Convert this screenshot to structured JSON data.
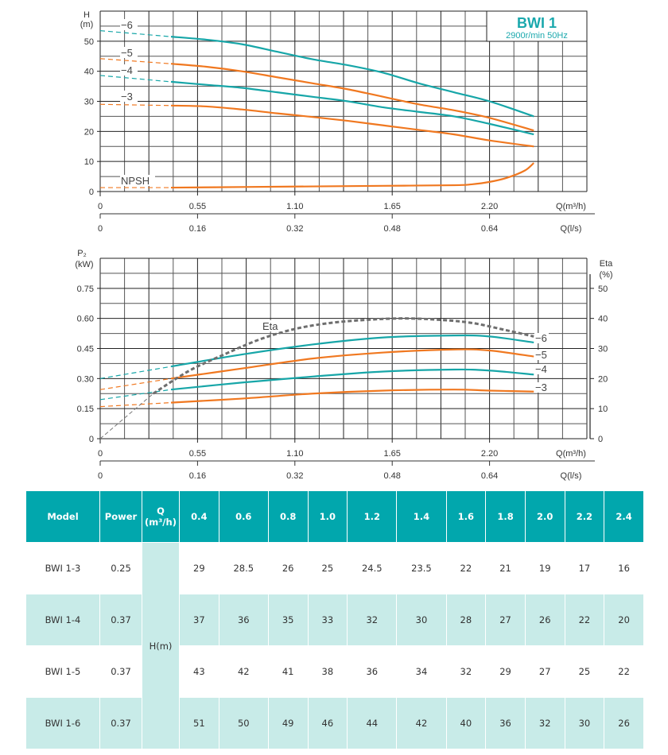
{
  "chart_data": [
    {
      "type": "line",
      "id": "head-chart",
      "title": "BWI 1",
      "subtitle": "2900r/min 50Hz",
      "ylabel": "H",
      "ylabel_unit": "(m)",
      "xlabel": "Q(m³/h)",
      "xlabel_secondary": "Q(l/s)",
      "xlim": [
        0,
        2.75
      ],
      "ylim": [
        0,
        60
      ],
      "yticks": [
        0,
        10,
        20,
        30,
        40,
        50
      ],
      "ytick_labels": [
        "0",
        "10",
        "20",
        "30",
        "40",
        "50"
      ],
      "xticks": [
        0,
        0.55,
        1.1,
        1.65,
        2.2
      ],
      "xtick_labels": [
        "0",
        "0.55",
        "1.10",
        "1.65",
        "2.20"
      ],
      "xticks_secondary_labels": [
        "0",
        "0.16",
        "0.32",
        "0.48",
        "0.64"
      ],
      "grid": true,
      "series": [
        {
          "name": "-6",
          "color": "#17a6a8",
          "dashed_x": [
            0,
            0.4
          ],
          "dashed_y": [
            53.5,
            51.5
          ],
          "x": [
            0.4,
            0.6,
            0.8,
            1.0,
            1.2,
            1.4,
            1.6,
            1.8,
            2.0,
            2.2,
            2.45
          ],
          "y": [
            51.5,
            50.5,
            49,
            46.5,
            44,
            42,
            39.5,
            36,
            33,
            30,
            25
          ]
        },
        {
          "name": "-5",
          "color": "#f07820",
          "dashed_x": [
            0,
            0.4
          ],
          "dashed_y": [
            44.2,
            42.5
          ],
          "x": [
            0.4,
            0.6,
            0.8,
            1.0,
            1.2,
            1.4,
            1.6,
            1.8,
            2.0,
            2.2,
            2.45
          ],
          "y": [
            42.5,
            41.5,
            40,
            38,
            36,
            34,
            31.5,
            29,
            27,
            24.5,
            20.3
          ]
        },
        {
          "name": "-4",
          "color": "#17a6a8",
          "dashed_x": [
            0,
            0.4
          ],
          "dashed_y": [
            38.6,
            36.5
          ],
          "x": [
            0.4,
            0.6,
            0.8,
            1.0,
            1.2,
            1.4,
            1.6,
            1.8,
            2.0,
            2.2,
            2.45
          ],
          "y": [
            36.5,
            35.5,
            34.5,
            33,
            31.5,
            30,
            28,
            26.5,
            25,
            22.5,
            19
          ]
        },
        {
          "name": "-3",
          "color": "#f07820",
          "dashed_x": [
            0,
            0.4
          ],
          "dashed_y": [
            29.0,
            28.6
          ],
          "x": [
            0.4,
            0.6,
            0.8,
            1.0,
            1.2,
            1.4,
            1.6,
            1.8,
            2.0,
            2.2,
            2.45
          ],
          "y": [
            28.6,
            28.3,
            27.3,
            26,
            24.8,
            23.5,
            22,
            20.5,
            19,
            17,
            15
          ]
        },
        {
          "name": "NPSH",
          "color": "#f07820",
          "dashed_x": [
            0,
            0.4
          ],
          "dashed_y": [
            1.3,
            1.3
          ],
          "x": [
            0.4,
            0.8,
            1.2,
            1.6,
            2.0,
            2.1,
            2.2,
            2.3,
            2.4,
            2.45
          ],
          "y": [
            1.3,
            1.5,
            1.7,
            1.9,
            2.1,
            2.4,
            3.2,
            4.6,
            7.0,
            9.5
          ]
        }
      ],
      "curve_labels": [
        "-6",
        "-5",
        "-4",
        "-3",
        "NPSH"
      ]
    },
    {
      "type": "line",
      "id": "power-chart",
      "ylabel": "P₂",
      "ylabel_unit": "(kW)",
      "ylabel_right": "Eta",
      "ylabel_right_unit": "(%)",
      "xlabel": "Q(m³/h)",
      "xlabel_secondary": "Q(l/s)",
      "xlim": [
        0,
        2.75
      ],
      "ylim": [
        0,
        0.9
      ],
      "ylim_right": [
        0,
        60
      ],
      "yticks": [
        0,
        0.15,
        0.3,
        0.45,
        0.6,
        0.75
      ],
      "ytick_labels": [
        "0",
        "0.15",
        "0.30",
        "0.45",
        "0.60",
        "0.75"
      ],
      "yticks_right": [
        0,
        10,
        20,
        30,
        40,
        50
      ],
      "ytick_labels_right": [
        "0",
        "10",
        "20",
        "30",
        "40",
        "50"
      ],
      "xticks": [
        0,
        0.55,
        1.1,
        1.65,
        2.2
      ],
      "xtick_labels": [
        "0",
        "0.55",
        "1.10",
        "1.65",
        "2.20"
      ],
      "xticks_secondary_labels": [
        "0",
        "0.16",
        "0.32",
        "0.48",
        "0.64"
      ],
      "grid": true,
      "series": [
        {
          "name": "-6",
          "color": "#17a6a8",
          "dashed_x": [
            0,
            0.4
          ],
          "dashed_y": [
            0.3,
            0.36
          ],
          "x": [
            0.4,
            0.8,
            1.2,
            1.6,
            2.0,
            2.2,
            2.45
          ],
          "y": [
            0.36,
            0.42,
            0.47,
            0.505,
            0.515,
            0.51,
            0.48
          ]
        },
        {
          "name": "-5",
          "color": "#f07820",
          "dashed_x": [
            0,
            0.4
          ],
          "dashed_y": [
            0.245,
            0.3
          ],
          "x": [
            0.4,
            0.8,
            1.2,
            1.6,
            2.0,
            2.2,
            2.45
          ],
          "y": [
            0.3,
            0.35,
            0.4,
            0.43,
            0.445,
            0.44,
            0.41
          ]
        },
        {
          "name": "-4",
          "color": "#17a6a8",
          "dashed_x": [
            0,
            0.4
          ],
          "dashed_y": [
            0.195,
            0.245
          ],
          "x": [
            0.4,
            0.8,
            1.2,
            1.6,
            2.0,
            2.2,
            2.45
          ],
          "y": [
            0.245,
            0.28,
            0.31,
            0.335,
            0.345,
            0.34,
            0.32
          ]
        },
        {
          "name": "-3",
          "color": "#f07820",
          "dashed_x": [
            0,
            0.4
          ],
          "dashed_y": [
            0.16,
            0.18
          ],
          "x": [
            0.4,
            0.8,
            1.2,
            1.6,
            2.0,
            2.2,
            2.45
          ],
          "y": [
            0.18,
            0.2,
            0.225,
            0.24,
            0.245,
            0.24,
            0.235
          ]
        }
      ],
      "eta_series": {
        "name": "Eta",
        "color": "#6e6e6e",
        "axis": "right",
        "thin_x": [
          0,
          0.3
        ],
        "thin_y": [
          0,
          15
        ],
        "x": [
          0.3,
          0.5,
          0.7,
          0.9,
          1.1,
          1.3,
          1.5,
          1.7,
          1.9,
          2.1,
          2.3,
          2.45
        ],
        "y": [
          15,
          22.5,
          28,
          33,
          36.5,
          38.5,
          39.5,
          40,
          39.6,
          38.5,
          36,
          34
        ]
      },
      "curve_labels": [
        "-6",
        "-5",
        "-4",
        "-3",
        "Eta"
      ]
    }
  ],
  "table": {
    "headers": [
      "Model",
      "Power",
      "Q\n(m³/h)",
      "0.4",
      "0.6",
      "0.8",
      "1.0",
      "1.2",
      "1.4",
      "1.6",
      "1.8",
      "2.0",
      "2.2",
      "2.4"
    ],
    "q_header_line1": "Q",
    "q_header_line2": "(m³/h)",
    "h_label": "H(m)",
    "rows": [
      {
        "model": "BWI 1-3",
        "power": "0.25",
        "values": [
          "29",
          "28.5",
          "26",
          "25",
          "24.5",
          "23.5",
          "22",
          "21",
          "19",
          "17",
          "16"
        ]
      },
      {
        "model": "BWI 1-4",
        "power": "0.37",
        "values": [
          "37",
          "36",
          "35",
          "33",
          "32",
          "30",
          "28",
          "27",
          "26",
          "22",
          "20"
        ]
      },
      {
        "model": "BWI 1-5",
        "power": "0.37",
        "values": [
          "43",
          "42",
          "41",
          "38",
          "36",
          "34",
          "32",
          "29",
          "27",
          "25",
          "22"
        ]
      },
      {
        "model": "BWI 1-6",
        "power": "0.37",
        "values": [
          "51",
          "50",
          "49",
          "46",
          "44",
          "42",
          "40",
          "36",
          "32",
          "30",
          "26"
        ]
      }
    ]
  }
}
